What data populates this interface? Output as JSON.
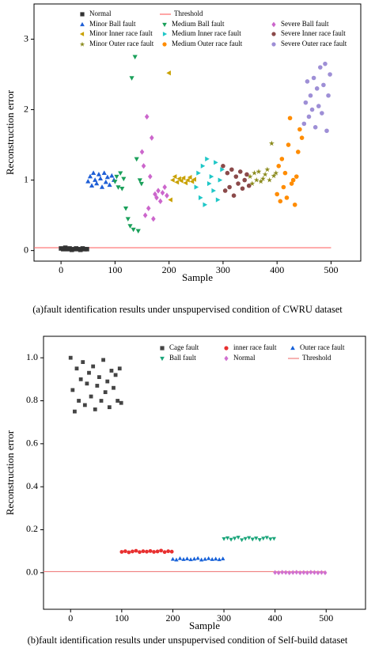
{
  "chart_data": [
    {
      "type": "scatter",
      "caption": "(a)fault identification results under unspupervised condition of CWRU dataset",
      "xlabel": "Sample",
      "ylabel": "Reconstruction error",
      "xlim": [
        -50,
        555
      ],
      "ylim": [
        -0.15,
        3.5
      ],
      "xticks": [
        0,
        100,
        200,
        300,
        400,
        500
      ],
      "yticks": [
        0,
        1,
        2,
        3
      ],
      "threshold": {
        "name": "Threshold",
        "value": 0.04,
        "x": [
          -50,
          500
        ],
        "color": "#ff6b6b"
      },
      "series": [
        {
          "name": "Normal",
          "color": "#333333",
          "marker": "square",
          "x": [
            0,
            4,
            8,
            12,
            16,
            20,
            24,
            28,
            32,
            36,
            40,
            44,
            48
          ],
          "values": [
            0.03,
            0.02,
            0.04,
            0.02,
            0.03,
            0.01,
            0.02,
            0.03,
            0.02,
            0.01,
            0.03,
            0.02,
            0.02
          ]
        },
        {
          "name": "Minor Ball fault",
          "color": "#1f5fd6",
          "marker": "triangle-up",
          "x": [
            50,
            54,
            57,
            60,
            63,
            66,
            70,
            73,
            76,
            80,
            83,
            86,
            90,
            94,
            98
          ],
          "values": [
            0.98,
            1.05,
            0.92,
            1.1,
            1.0,
            0.95,
            1.08,
            1.02,
            0.9,
            1.1,
            0.97,
            1.04,
            0.93,
            1.06,
            1.0
          ]
        },
        {
          "name": "Minor Inner race fault",
          "color": "#c9a100",
          "marker": "triangle-left",
          "x": [
            200,
            203,
            207,
            211,
            215,
            219,
            223,
            227,
            231,
            235,
            239,
            243,
            247
          ],
          "values": [
            2.52,
            0.72,
            1.0,
            1.05,
            0.97,
            1.02,
            0.99,
            1.03,
            0.96,
            1.0,
            1.04,
            0.98,
            1.01
          ]
        },
        {
          "name": "Minor Outer race fault",
          "color": "#8b8b1e",
          "marker": "star",
          "x": [
            350,
            354,
            358,
            362,
            366,
            370,
            374,
            378,
            382,
            386,
            390,
            394,
            398
          ],
          "values": [
            1.05,
            0.95,
            1.1,
            1.0,
            1.12,
            0.98,
            1.02,
            1.08,
            1.15,
            1.0,
            1.52,
            1.06,
            1.1
          ]
        },
        {
          "name": "Medium Ball fault",
          "color": "#1aa05a",
          "marker": "triangle-down",
          "x": [
            100,
            103,
            106,
            110,
            113,
            116,
            120,
            124,
            128,
            131,
            134,
            137,
            140,
            143,
            146,
            149
          ],
          "values": [
            0.98,
            1.05,
            0.9,
            1.1,
            0.88,
            1.02,
            0.6,
            0.45,
            0.35,
            2.45,
            0.3,
            2.75,
            1.3,
            0.28,
            1.0,
            0.95
          ]
        },
        {
          "name": "Medium Inner race fault",
          "color": "#1fc7c7",
          "marker": "triangle-right",
          "x": [
            250,
            254,
            258,
            262,
            266,
            270,
            274,
            278,
            282,
            286,
            290,
            294,
            298
          ],
          "values": [
            0.9,
            1.1,
            0.75,
            1.2,
            0.65,
            1.3,
            0.95,
            1.05,
            0.85,
            1.25,
            0.72,
            1.0,
            1.15
          ]
        },
        {
          "name": "Medium Outer race fault",
          "color": "#ff8c00",
          "marker": "circle",
          "x": [
            400,
            403,
            406,
            409,
            412,
            415,
            418,
            421,
            424,
            427,
            430,
            433,
            436,
            439,
            442,
            446
          ],
          "values": [
            0.8,
            1.2,
            0.7,
            1.3,
            0.9,
            1.1,
            0.75,
            1.5,
            1.88,
            0.95,
            1.0,
            0.65,
            1.05,
            1.4,
            1.72,
            1.6
          ]
        },
        {
          "name": "Severe Ball fault",
          "color": "#cc66cc",
          "marker": "diamond",
          "x": [
            150,
            153,
            156,
            159,
            162,
            165,
            168,
            171,
            174,
            177,
            180,
            184,
            188,
            192,
            196
          ],
          "values": [
            1.4,
            1.2,
            0.5,
            1.9,
            0.6,
            1.05,
            1.6,
            0.45,
            0.8,
            0.75,
            0.85,
            0.7,
            0.82,
            0.9,
            0.78
          ]
        },
        {
          "name": "Severe Inner race fault",
          "color": "#8b4a4a",
          "marker": "circle",
          "x": [
            300,
            304,
            308,
            312,
            316,
            320,
            324,
            328,
            332,
            336,
            340,
            344,
            348
          ],
          "values": [
            1.2,
            0.85,
            1.1,
            0.9,
            1.15,
            0.78,
            1.05,
            0.95,
            1.12,
            0.88,
            1.0,
            1.08,
            0.92
          ]
        },
        {
          "name": "Severe Outer race fault",
          "color": "#9e8fd6",
          "marker": "circle",
          "x": [
            450,
            453,
            456,
            459,
            462,
            465,
            468,
            471,
            474,
            477,
            480,
            483,
            486,
            489,
            492,
            495,
            498
          ],
          "values": [
            1.8,
            2.1,
            2.4,
            1.9,
            2.2,
            2.0,
            2.45,
            1.75,
            2.3,
            2.05,
            2.6,
            1.95,
            2.35,
            2.65,
            1.7,
            2.2,
            2.5
          ]
        }
      ]
    },
    {
      "type": "scatter",
      "caption": "(b)fault identification results under unspupervised condition of Self-build dataset",
      "xlabel": "Sample",
      "ylabel": "Reconstruction error",
      "xlim": [
        -53,
        577
      ],
      "ylim": [
        -0.17,
        1.1
      ],
      "xticks": [
        0,
        100,
        200,
        300,
        400,
        500
      ],
      "yticks": [
        {
          "value": 0,
          "label": "0.0"
        },
        0.2,
        0.4,
        0.6,
        0.8,
        {
          "value": 1,
          "label": "1.0"
        }
      ],
      "threshold": {
        "name": "Threshold",
        "value": 0.005,
        "x": [
          -53,
          500
        ],
        "color": "#f07f7f"
      },
      "series": [
        {
          "name": "Cage fault",
          "color": "#444444",
          "marker": "square",
          "x": [
            0,
            4,
            8,
            12,
            16,
            20,
            24,
            28,
            32,
            36,
            40,
            44,
            48,
            52,
            56,
            60,
            64,
            68,
            72,
            76,
            80,
            84,
            88,
            92,
            96,
            99
          ],
          "values": [
            1.0,
            0.85,
            0.75,
            0.95,
            0.8,
            0.9,
            0.98,
            0.78,
            0.88,
            0.93,
            0.82,
            0.96,
            0.76,
            0.87,
            0.91,
            0.8,
            0.99,
            0.84,
            0.89,
            0.77,
            0.94,
            0.86,
            0.92,
            0.8,
            0.95,
            0.79
          ]
        },
        {
          "name": "inner race fault",
          "color": "#e83030",
          "marker": "circle",
          "x": [
            100,
            107,
            114,
            121,
            128,
            135,
            142,
            149,
            156,
            163,
            170,
            177,
            184,
            191,
            198
          ],
          "values": [
            0.097,
            0.1,
            0.095,
            0.099,
            0.102,
            0.096,
            0.1,
            0.098,
            0.101,
            0.097,
            0.099,
            0.103,
            0.096,
            0.1,
            0.098
          ]
        },
        {
          "name": "Outer race fault",
          "color": "#1560d8",
          "marker": "triangle-up",
          "x": [
            200,
            207,
            214,
            221,
            228,
            235,
            242,
            249,
            256,
            263,
            270,
            277,
            284,
            291,
            298
          ],
          "values": [
            0.063,
            0.06,
            0.066,
            0.062,
            0.065,
            0.061,
            0.064,
            0.067,
            0.06,
            0.063,
            0.066,
            0.062,
            0.064,
            0.061,
            0.065
          ]
        },
        {
          "name": "Ball fault",
          "color": "#1aa57a",
          "marker": "triangle-down",
          "x": [
            300,
            307,
            314,
            321,
            328,
            335,
            342,
            349,
            356,
            363,
            370,
            377,
            384,
            391,
            398
          ],
          "values": [
            0.158,
            0.162,
            0.155,
            0.16,
            0.165,
            0.153,
            0.159,
            0.163,
            0.156,
            0.161,
            0.154,
            0.16,
            0.164,
            0.157,
            0.159
          ]
        },
        {
          "name": "Normal",
          "color": "#d070d0",
          "marker": "diamond",
          "x": [
            400,
            407,
            414,
            421,
            428,
            435,
            442,
            449,
            456,
            463,
            470,
            477,
            484,
            491,
            498
          ],
          "values": [
            0.001,
            0.0,
            0.002,
            0.001,
            0.0,
            0.001,
            0.002,
            0.0,
            0.001,
            0.0,
            0.002,
            0.001,
            0.0,
            0.001,
            0.0
          ]
        }
      ]
    }
  ]
}
